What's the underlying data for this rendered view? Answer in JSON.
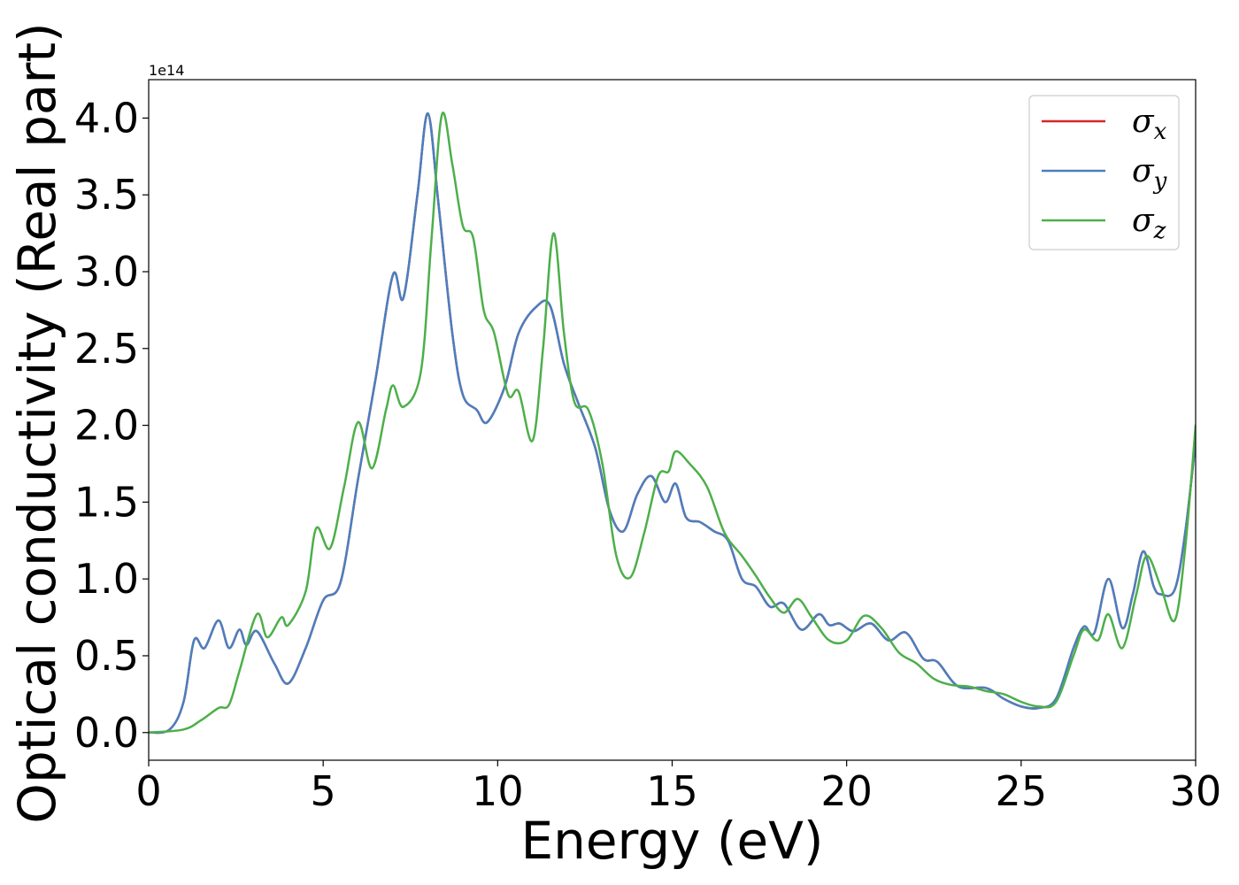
{
  "chart_data": {
    "type": "line",
    "xlabel": "Energy (eV)",
    "ylabel": "Optical conductivity (Real part)",
    "y_offset_label": "1e14",
    "xlim": [
      0,
      30
    ],
    "ylim": [
      -0.18,
      4.25
    ],
    "xticks": [
      0,
      5,
      10,
      15,
      20,
      25,
      30
    ],
    "yticks": [
      0.0,
      0.5,
      1.0,
      1.5,
      2.0,
      2.5,
      3.0,
      3.5,
      4.0
    ],
    "xtick_labels": [
      "0",
      "5",
      "10",
      "15",
      "20",
      "25",
      "30"
    ],
    "ytick_labels": [
      "0.0",
      "0.5",
      "1.0",
      "1.5",
      "2.0",
      "2.5",
      "3.0",
      "3.5",
      "4.0"
    ],
    "legend_position": "top-right",
    "series": [
      {
        "name": "σ",
        "subscript": "x",
        "color": "#d62728",
        "points": [
          [
            0,
            0
          ],
          [
            0.6,
            0.02
          ],
          [
            1.0,
            0.2
          ],
          [
            1.3,
            0.6
          ],
          [
            1.6,
            0.55
          ],
          [
            2.0,
            0.73
          ],
          [
            2.3,
            0.55
          ],
          [
            2.6,
            0.67
          ],
          [
            2.8,
            0.57
          ],
          [
            3.1,
            0.66
          ],
          [
            3.6,
            0.45
          ],
          [
            4.0,
            0.32
          ],
          [
            4.5,
            0.55
          ],
          [
            5.0,
            0.86
          ],
          [
            5.5,
            0.98
          ],
          [
            6.0,
            1.65
          ],
          [
            6.5,
            2.3
          ],
          [
            7.0,
            2.98
          ],
          [
            7.3,
            2.83
          ],
          [
            7.7,
            3.5
          ],
          [
            8.0,
            4.03
          ],
          [
            8.3,
            3.45
          ],
          [
            8.7,
            2.6
          ],
          [
            9.0,
            2.2
          ],
          [
            9.4,
            2.1
          ],
          [
            9.7,
            2.02
          ],
          [
            10.2,
            2.25
          ],
          [
            10.6,
            2.6
          ],
          [
            11.1,
            2.77
          ],
          [
            11.5,
            2.78
          ],
          [
            11.9,
            2.4
          ],
          [
            12.3,
            2.15
          ],
          [
            12.8,
            1.85
          ],
          [
            13.2,
            1.45
          ],
          [
            13.6,
            1.31
          ],
          [
            14.0,
            1.55
          ],
          [
            14.4,
            1.67
          ],
          [
            14.8,
            1.5
          ],
          [
            15.1,
            1.62
          ],
          [
            15.4,
            1.4
          ],
          [
            15.8,
            1.37
          ],
          [
            16.2,
            1.31
          ],
          [
            16.6,
            1.25
          ],
          [
            17.0,
            1.0
          ],
          [
            17.4,
            0.95
          ],
          [
            17.8,
            0.82
          ],
          [
            18.2,
            0.84
          ],
          [
            18.7,
            0.67
          ],
          [
            19.2,
            0.77
          ],
          [
            19.5,
            0.7
          ],
          [
            19.8,
            0.71
          ],
          [
            20.2,
            0.66
          ],
          [
            20.7,
            0.71
          ],
          [
            21.2,
            0.6
          ],
          [
            21.7,
            0.65
          ],
          [
            22.2,
            0.48
          ],
          [
            22.6,
            0.46
          ],
          [
            23.2,
            0.3
          ],
          [
            24.0,
            0.29
          ],
          [
            24.5,
            0.22
          ],
          [
            25.0,
            0.17
          ],
          [
            25.5,
            0.16
          ],
          [
            26.0,
            0.22
          ],
          [
            26.5,
            0.55
          ],
          [
            26.8,
            0.69
          ],
          [
            27.1,
            0.65
          ],
          [
            27.5,
            1.0
          ],
          [
            27.9,
            0.68
          ],
          [
            28.2,
            0.9
          ],
          [
            28.5,
            1.18
          ],
          [
            28.8,
            0.95
          ],
          [
            29.0,
            0.9
          ],
          [
            29.4,
            0.93
          ],
          [
            29.7,
            1.3
          ],
          [
            30.0,
            1.9
          ]
        ]
      },
      {
        "name": "σ",
        "subscript": "y",
        "color": "#4a7fbf",
        "points": [
          [
            0,
            0
          ],
          [
            0.6,
            0.02
          ],
          [
            1.0,
            0.2
          ],
          [
            1.3,
            0.6
          ],
          [
            1.6,
            0.55
          ],
          [
            2.0,
            0.73
          ],
          [
            2.3,
            0.55
          ],
          [
            2.6,
            0.67
          ],
          [
            2.8,
            0.57
          ],
          [
            3.1,
            0.66
          ],
          [
            3.6,
            0.45
          ],
          [
            4.0,
            0.32
          ],
          [
            4.5,
            0.55
          ],
          [
            5.0,
            0.86
          ],
          [
            5.5,
            0.98
          ],
          [
            6.0,
            1.65
          ],
          [
            6.5,
            2.3
          ],
          [
            7.0,
            2.98
          ],
          [
            7.3,
            2.83
          ],
          [
            7.7,
            3.5
          ],
          [
            8.0,
            4.03
          ],
          [
            8.3,
            3.45
          ],
          [
            8.7,
            2.6
          ],
          [
            9.0,
            2.2
          ],
          [
            9.4,
            2.1
          ],
          [
            9.7,
            2.02
          ],
          [
            10.2,
            2.25
          ],
          [
            10.6,
            2.6
          ],
          [
            11.1,
            2.77
          ],
          [
            11.5,
            2.78
          ],
          [
            11.9,
            2.4
          ],
          [
            12.3,
            2.15
          ],
          [
            12.8,
            1.85
          ],
          [
            13.2,
            1.45
          ],
          [
            13.6,
            1.31
          ],
          [
            14.0,
            1.55
          ],
          [
            14.4,
            1.67
          ],
          [
            14.8,
            1.5
          ],
          [
            15.1,
            1.62
          ],
          [
            15.4,
            1.4
          ],
          [
            15.8,
            1.37
          ],
          [
            16.2,
            1.31
          ],
          [
            16.6,
            1.25
          ],
          [
            17.0,
            1.0
          ],
          [
            17.4,
            0.95
          ],
          [
            17.8,
            0.82
          ],
          [
            18.2,
            0.84
          ],
          [
            18.7,
            0.67
          ],
          [
            19.2,
            0.77
          ],
          [
            19.5,
            0.7
          ],
          [
            19.8,
            0.71
          ],
          [
            20.2,
            0.66
          ],
          [
            20.7,
            0.71
          ],
          [
            21.2,
            0.6
          ],
          [
            21.7,
            0.65
          ],
          [
            22.2,
            0.48
          ],
          [
            22.6,
            0.46
          ],
          [
            23.2,
            0.3
          ],
          [
            24.0,
            0.29
          ],
          [
            24.5,
            0.22
          ],
          [
            25.0,
            0.17
          ],
          [
            25.5,
            0.16
          ],
          [
            26.0,
            0.22
          ],
          [
            26.5,
            0.55
          ],
          [
            26.8,
            0.69
          ],
          [
            27.1,
            0.65
          ],
          [
            27.5,
            1.0
          ],
          [
            27.9,
            0.68
          ],
          [
            28.2,
            0.9
          ],
          [
            28.5,
            1.18
          ],
          [
            28.8,
            0.95
          ],
          [
            29.0,
            0.9
          ],
          [
            29.4,
            0.93
          ],
          [
            29.7,
            1.3
          ],
          [
            30.0,
            1.9
          ]
        ]
      },
      {
        "name": "σ",
        "subscript": "z",
        "color": "#4daf4a",
        "points": [
          [
            0,
            0
          ],
          [
            1.0,
            0.02
          ],
          [
            1.5,
            0.08
          ],
          [
            2.0,
            0.16
          ],
          [
            2.3,
            0.18
          ],
          [
            2.6,
            0.4
          ],
          [
            3.1,
            0.77
          ],
          [
            3.4,
            0.62
          ],
          [
            3.8,
            0.75
          ],
          [
            4.0,
            0.7
          ],
          [
            4.5,
            0.92
          ],
          [
            4.8,
            1.33
          ],
          [
            5.2,
            1.2
          ],
          [
            5.6,
            1.6
          ],
          [
            6.0,
            2.02
          ],
          [
            6.4,
            1.72
          ],
          [
            6.8,
            2.1
          ],
          [
            7.0,
            2.26
          ],
          [
            7.3,
            2.12
          ],
          [
            7.8,
            2.35
          ],
          [
            8.1,
            3.2
          ],
          [
            8.4,
            4.02
          ],
          [
            8.7,
            3.7
          ],
          [
            9.0,
            3.3
          ],
          [
            9.3,
            3.22
          ],
          [
            9.6,
            2.75
          ],
          [
            9.9,
            2.6
          ],
          [
            10.3,
            2.2
          ],
          [
            10.6,
            2.22
          ],
          [
            11.0,
            1.9
          ],
          [
            11.3,
            2.5
          ],
          [
            11.6,
            3.25
          ],
          [
            11.9,
            2.6
          ],
          [
            12.2,
            2.15
          ],
          [
            12.6,
            2.1
          ],
          [
            13.0,
            1.75
          ],
          [
            13.4,
            1.15
          ],
          [
            13.8,
            1.01
          ],
          [
            14.2,
            1.3
          ],
          [
            14.6,
            1.67
          ],
          [
            14.9,
            1.7
          ],
          [
            15.1,
            1.83
          ],
          [
            15.5,
            1.75
          ],
          [
            16.0,
            1.6
          ],
          [
            16.5,
            1.3
          ],
          [
            17.0,
            1.15
          ],
          [
            17.4,
            1.02
          ],
          [
            17.8,
            0.88
          ],
          [
            18.2,
            0.78
          ],
          [
            18.6,
            0.87
          ],
          [
            19.0,
            0.75
          ],
          [
            19.5,
            0.6
          ],
          [
            20.0,
            0.6
          ],
          [
            20.5,
            0.76
          ],
          [
            21.0,
            0.68
          ],
          [
            21.5,
            0.52
          ],
          [
            22.0,
            0.45
          ],
          [
            22.5,
            0.35
          ],
          [
            23.0,
            0.31
          ],
          [
            23.5,
            0.3
          ],
          [
            24.0,
            0.27
          ],
          [
            24.5,
            0.25
          ],
          [
            25.0,
            0.2
          ],
          [
            25.5,
            0.17
          ],
          [
            26.0,
            0.2
          ],
          [
            26.5,
            0.5
          ],
          [
            26.8,
            0.67
          ],
          [
            27.2,
            0.6
          ],
          [
            27.5,
            0.77
          ],
          [
            27.9,
            0.55
          ],
          [
            28.3,
            0.9
          ],
          [
            28.6,
            1.15
          ],
          [
            29.0,
            0.95
          ],
          [
            29.4,
            0.73
          ],
          [
            29.7,
            1.2
          ],
          [
            30.0,
            2.0
          ]
        ]
      }
    ]
  }
}
